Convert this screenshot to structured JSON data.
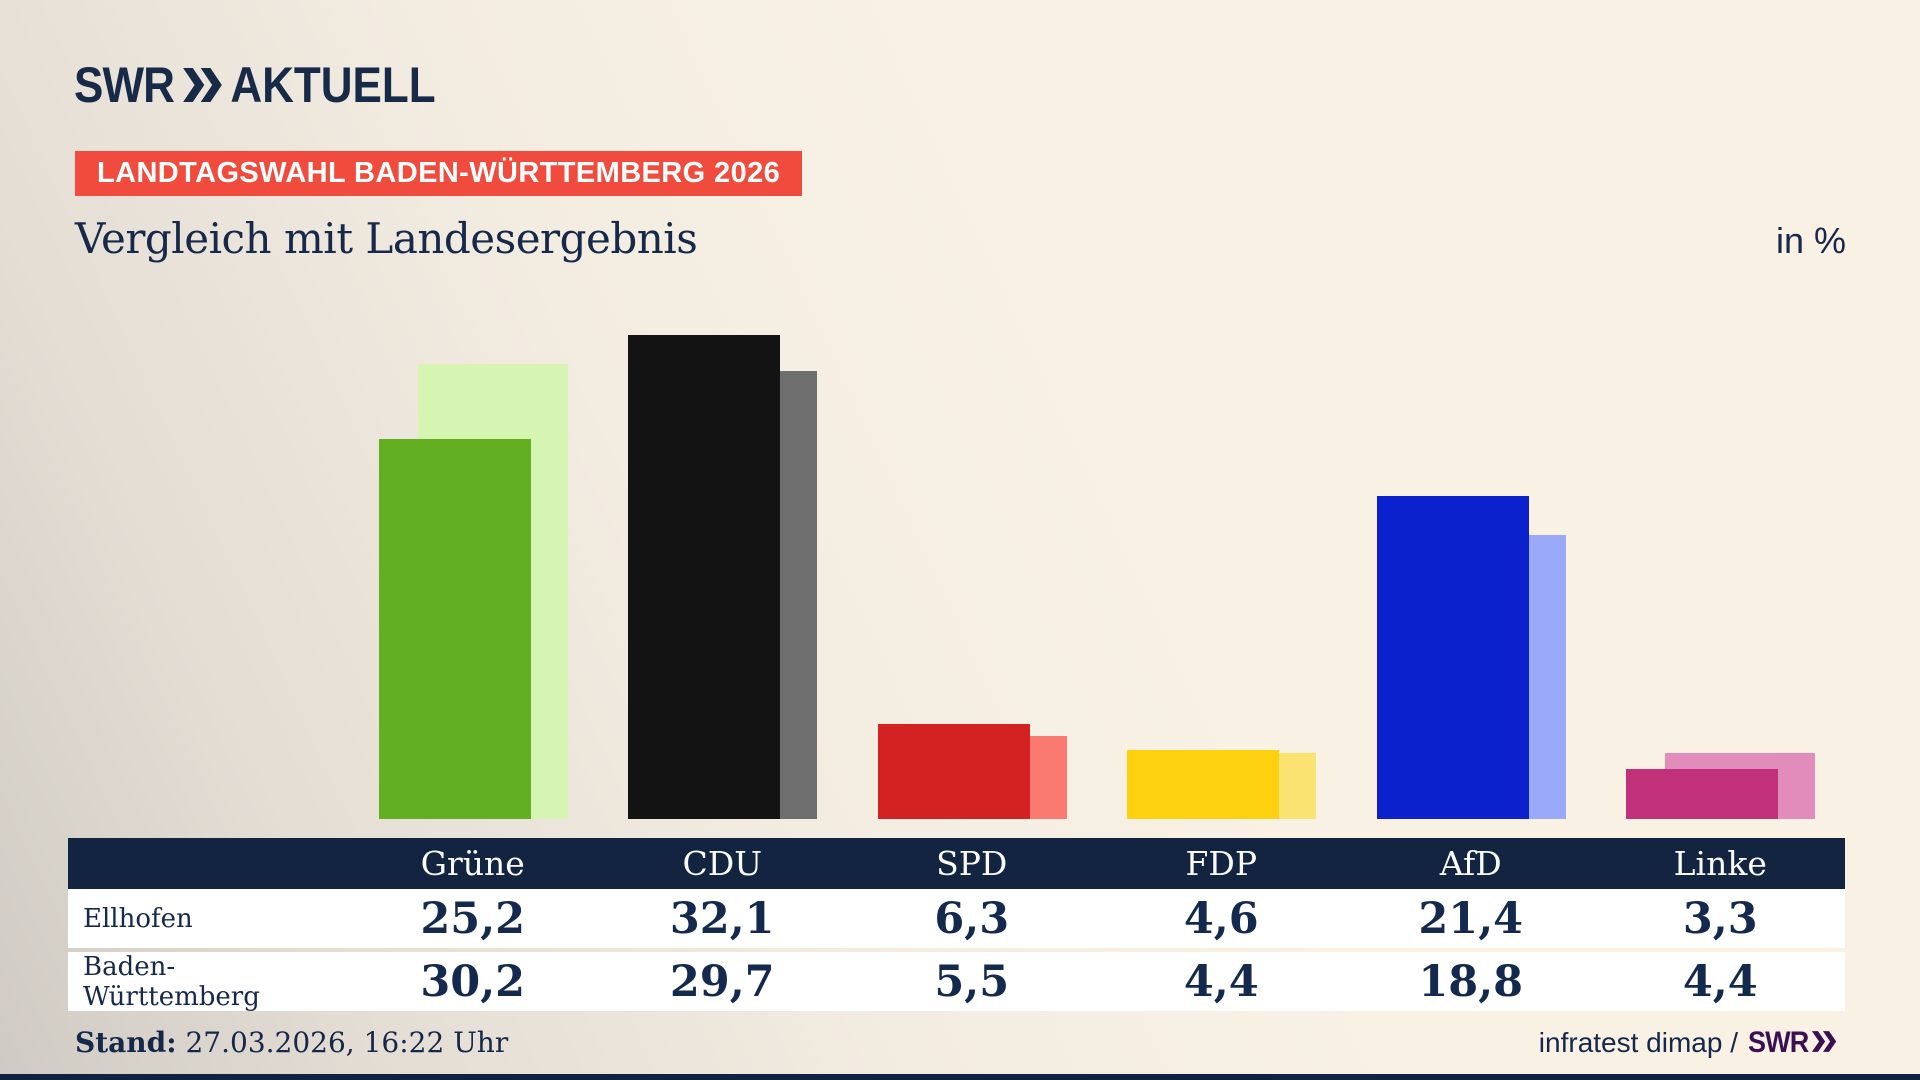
{
  "header": {
    "logo": {
      "swr": "SWR",
      "aktuell": "AKTUELL"
    },
    "badge": "LANDTAGSWAHL BADEN-WÜRTTEMBERG 2026",
    "title": "Vergleich mit Landesergebnis",
    "unit": "in %"
  },
  "chart_data": {
    "type": "bar",
    "categories": [
      "Grüne",
      "CDU",
      "SPD",
      "FDP",
      "AfD",
      "Linke"
    ],
    "series": [
      {
        "name": "Ellhofen",
        "values": [
          25.2,
          32.1,
          6.3,
          4.6,
          21.4,
          3.3
        ]
      },
      {
        "name": "Baden-Württemberg",
        "values": [
          30.2,
          29.7,
          5.5,
          4.4,
          18.8,
          4.4
        ]
      }
    ],
    "series_colors": {
      "Ellhofen": [
        "#62b021",
        "#131313",
        "#d42222",
        "#fed110",
        "#0a21cd",
        "#c13179"
      ],
      "Baden-Württemberg": [
        "#d6f5b2",
        "#6e6e6e",
        "#fa7a72",
        "#fbe371",
        "#9aa9f8",
        "#e18cba"
      ]
    },
    "title": "Vergleich mit Landesergebnis",
    "xlabel": "",
    "ylabel": "in %",
    "ylim": [
      0,
      36.4
    ],
    "grid": false,
    "legend_position": "table-below"
  },
  "table": {
    "columns": [
      "Grüne",
      "CDU",
      "SPD",
      "FDP",
      "AfD",
      "Linke"
    ],
    "rows": [
      {
        "label": "Ellhofen",
        "values": [
          "25,2",
          "32,1",
          "6,3",
          "4,6",
          "21,4",
          "3,3"
        ]
      },
      {
        "label": "Baden-Württemberg",
        "values": [
          "30,2",
          "29,7",
          "5,5",
          "4,4",
          "18,8",
          "4,4"
        ]
      }
    ]
  },
  "footer": {
    "stand_label": "Stand:",
    "stand_value": "27.03.2026, 16:22 Uhr",
    "source": "infratest dimap /",
    "source_logo": "SWR"
  },
  "colors": {
    "background_cream": "#f8f1e4",
    "background_gray": "#cfcac3",
    "navy_text": "#16294a",
    "table_header_bg": "#122440",
    "badge_red": "#f04b3c",
    "swr_purple": "#3b1052"
  }
}
